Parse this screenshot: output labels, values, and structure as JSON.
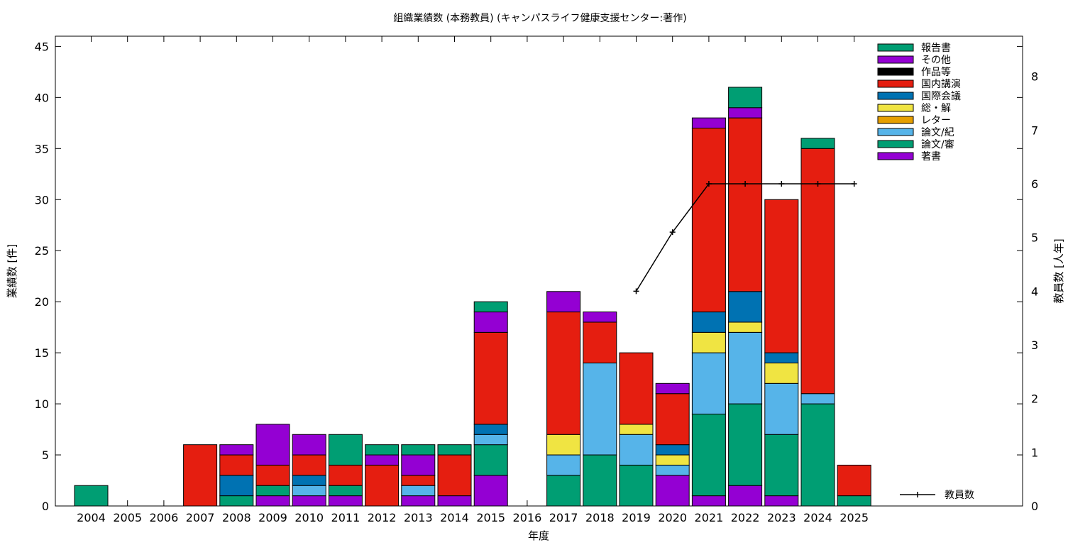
{
  "chart_data": {
    "type": "bar",
    "stacked": true,
    "title": "組織業績数 (本務教員) (キャンパスライフ健康支援センター:著作)",
    "xlabel": "年度",
    "ylabel": "業績数 [件]",
    "y2label": "教員数 [人年]",
    "ylim": [
      0,
      46
    ],
    "y2lim": [
      0,
      8.75
    ],
    "yticks": [
      "0",
      "5",
      "10",
      "15",
      "20",
      "25",
      "30",
      "35",
      "40",
      "45"
    ],
    "y2ticks": [
      "0",
      "1",
      "2",
      "3",
      "4",
      "5",
      "6",
      "7",
      "8"
    ],
    "grid": false,
    "legend_position": "top-right",
    "categories": [
      "2004",
      "2005",
      "2006",
      "2007",
      "2008",
      "2009",
      "2010",
      "2011",
      "2012",
      "2013",
      "2014",
      "2015",
      "2016",
      "2017",
      "2018",
      "2019",
      "2020",
      "2021",
      "2022",
      "2023",
      "2024",
      "2025"
    ],
    "series": [
      {
        "name": "著書",
        "color": "#9400d3",
        "values": [
          0,
          0,
          0,
          0,
          0,
          1,
          1,
          1,
          0,
          1,
          1,
          3,
          0,
          0,
          0,
          0,
          3,
          1,
          2,
          1,
          0,
          0
        ]
      },
      {
        "name": "論文/審",
        "color": "#009e73",
        "values": [
          2,
          0,
          0,
          0,
          1,
          1,
          0,
          1,
          0,
          0,
          0,
          3,
          0,
          3,
          5,
          4,
          0,
          8,
          8,
          6,
          10,
          1
        ]
      },
      {
        "name": "論文/紀",
        "color": "#56b4e9",
        "values": [
          0,
          0,
          0,
          0,
          0,
          0,
          1,
          0,
          0,
          1,
          0,
          1,
          0,
          2,
          9,
          3,
          1,
          6,
          7,
          5,
          1,
          0
        ]
      },
      {
        "name": "レター",
        "color": "#e69f00",
        "values": [
          0,
          0,
          0,
          0,
          0,
          0,
          0,
          0,
          0,
          0,
          0,
          0,
          0,
          0,
          0,
          0,
          0,
          0,
          0,
          0,
          0,
          0
        ]
      },
      {
        "name": "総・解",
        "color": "#f0e442",
        "values": [
          0,
          0,
          0,
          0,
          0,
          0,
          0,
          0,
          0,
          0,
          0,
          0,
          0,
          2,
          0,
          1,
          1,
          2,
          1,
          2,
          0,
          0
        ]
      },
      {
        "name": "国際会議",
        "color": "#0072b2",
        "values": [
          0,
          0,
          0,
          0,
          2,
          0,
          1,
          0,
          0,
          0,
          0,
          1,
          0,
          0,
          0,
          0,
          1,
          2,
          3,
          1,
          0,
          0
        ]
      },
      {
        "name": "国内講演",
        "color": "#e51e10",
        "values": [
          0,
          0,
          0,
          6,
          2,
          2,
          2,
          2,
          4,
          1,
          4,
          9,
          0,
          12,
          4,
          7,
          5,
          18,
          17,
          15,
          24,
          3
        ]
      },
      {
        "name": "作品等",
        "color": "#000000",
        "values": [
          0,
          0,
          0,
          0,
          0,
          0,
          0,
          0,
          0,
          0,
          0,
          0,
          0,
          0,
          0,
          0,
          0,
          0,
          0,
          0,
          0,
          0
        ]
      },
      {
        "name": "その他",
        "color": "#9400d3",
        "values": [
          0,
          0,
          0,
          0,
          1,
          4,
          2,
          0,
          1,
          2,
          0,
          2,
          0,
          2,
          1,
          0,
          1,
          1,
          1,
          0,
          0,
          0
        ]
      },
      {
        "name": "報告書",
        "color": "#009e73",
        "values": [
          0,
          0,
          0,
          0,
          0,
          0,
          0,
          3,
          1,
          1,
          1,
          1,
          0,
          0,
          0,
          0,
          0,
          0,
          2,
          0,
          1,
          0
        ]
      }
    ],
    "legend": [
      "報告書",
      "その他",
      "作品等",
      "国内講演",
      "国際会議",
      "総・解",
      "レター",
      "論文/紀",
      "論文/審",
      "著書"
    ],
    "line_series": {
      "name": "教員数",
      "axis": "y2",
      "color": "#000000",
      "x": [
        "2019",
        "2020",
        "2021",
        "2022",
        "2023",
        "2024",
        "2025"
      ],
      "values": [
        4,
        5.1,
        6,
        6,
        6,
        6,
        6
      ]
    }
  }
}
